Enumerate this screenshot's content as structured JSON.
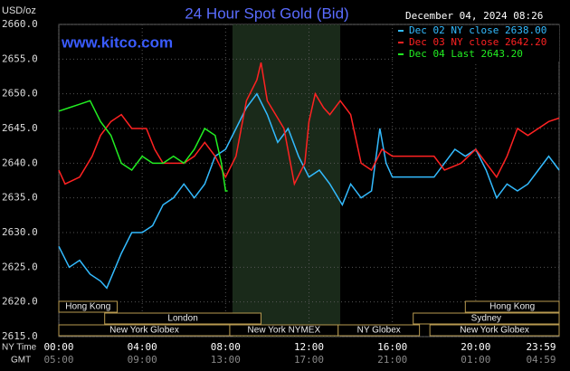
{
  "chart_data": {
    "type": "line",
    "title": "24 Hour Spot Gold (Bid)",
    "y_label": "USD/oz",
    "date": "December 04, 2024 08:26",
    "watermark": "www.kitco.com",
    "row_labels": [
      "NY Time",
      "GMT"
    ],
    "xlim": [
      0,
      24
    ],
    "ylim": [
      2615,
      2660
    ],
    "yticks": [
      {
        "value": 2615,
        "label": "2615.0"
      },
      {
        "value": 2620,
        "label": "2620.0"
      },
      {
        "value": 2625,
        "label": "2625.0"
      },
      {
        "value": 2630,
        "label": "2630.0"
      },
      {
        "value": 2635,
        "label": "2635.0"
      },
      {
        "value": 2640,
        "label": "2640.0"
      },
      {
        "value": 2645,
        "label": "2645.0"
      },
      {
        "value": 2650,
        "label": "2650.0"
      },
      {
        "value": 2655,
        "label": "2655.0"
      },
      {
        "value": 2660,
        "label": "2660.0"
      }
    ],
    "xticks": [
      {
        "value": 0,
        "label": "00:00"
      },
      {
        "value": 4,
        "label": "04:00"
      },
      {
        "value": 8,
        "label": "08:00"
      },
      {
        "value": 12,
        "label": "12:00"
      },
      {
        "value": 16,
        "label": "16:00"
      },
      {
        "value": 20,
        "label": "20:00"
      },
      {
        "value": 24,
        "label": "23:59"
      }
    ],
    "x2ticks": [
      {
        "value": 0,
        "label": "05:00"
      },
      {
        "value": 4,
        "label": "09:00"
      },
      {
        "value": 8,
        "label": "13:00"
      },
      {
        "value": 12,
        "label": "17:00"
      },
      {
        "value": 16,
        "label": "21:00"
      },
      {
        "value": 20,
        "label": "01:00"
      },
      {
        "value": 24,
        "label": "04:59"
      }
    ],
    "grid": true,
    "sessions": [
      "Hong Kong",
      "Hong Kong",
      "London",
      "Sydney",
      "New York Globex",
      "New York NYMEX",
      "NY Globex",
      "New York Globex"
    ],
    "series": [
      {
        "name": "Dec 02 NY close 2638.00",
        "color": "#33bbff",
        "x": [
          0,
          0.5,
          1,
          1.5,
          2,
          2.3,
          3,
          3.5,
          4,
          4.5,
          5,
          5.5,
          6,
          6.5,
          7,
          7.5,
          8,
          8.5,
          9,
          9.5,
          10,
          10.5,
          11,
          11.5,
          12,
          12.5,
          13,
          13.6,
          14,
          14.5,
          15,
          15.4,
          15.7,
          16,
          17,
          18,
          18.5,
          19,
          19.5,
          20,
          20.5,
          21,
          21.5,
          22,
          22.5,
          23,
          23.5,
          24
        ],
        "values": [
          2628,
          2625,
          2626,
          2624,
          2623,
          2622,
          2627,
          2630,
          2630,
          2631,
          2634,
          2635,
          2637,
          2635,
          2637,
          2641,
          2642,
          2645,
          2648,
          2650,
          2647,
          2643,
          2645,
          2641,
          2638,
          2639,
          2637,
          2634,
          2637,
          2635,
          2636,
          2645,
          2640,
          2638,
          2638,
          2638,
          2640,
          2642,
          2641,
          2642,
          2639,
          2635,
          2637,
          2636,
          2637,
          2639,
          2641,
          2639
        ]
      },
      {
        "name": "Dec 03 NY close 2642.20",
        "color": "#ff2222",
        "x": [
          0,
          0.3,
          1,
          1.6,
          2,
          2.5,
          3,
          3.5,
          4.2,
          4.6,
          5,
          6,
          6.5,
          7,
          7.5,
          8,
          8.5,
          9,
          9.5,
          9.7,
          10,
          10.4,
          10.8,
          11.3,
          11.8,
          12,
          12.3,
          12.7,
          13,
          13.5,
          14,
          14.5,
          15,
          15.5,
          16,
          17,
          18,
          18.5,
          19.3,
          20,
          20.5,
          21,
          21.5,
          22,
          22.5,
          23,
          23.5,
          24
        ],
        "values": [
          2639,
          2637,
          2638,
          2641,
          2644,
          2646,
          2647,
          2645,
          2645,
          2642,
          2640,
          2640,
          2641,
          2643,
          2641,
          2638,
          2641,
          2649,
          2652,
          2654.5,
          2649,
          2647,
          2645,
          2637,
          2640,
          2646,
          2650,
          2648,
          2647,
          2649,
          2647,
          2640,
          2639,
          2642,
          2641,
          2641,
          2641,
          2639,
          2640,
          2642,
          2640,
          2638,
          2641,
          2645,
          2644,
          2645,
          2646,
          2646.5
        ]
      },
      {
        "name": "Dec 04 Last 2643.20",
        "color": "#22ee22",
        "x": [
          0,
          0.5,
          1,
          1.5,
          2,
          2.5,
          3,
          3.5,
          4,
          4.5,
          5,
          5.5,
          6,
          6.5,
          7,
          7.5,
          7.8,
          8,
          8.1
        ],
        "values": [
          2647.5,
          2648,
          2648.5,
          2649,
          2646,
          2644,
          2640,
          2639,
          2641,
          2640,
          2640,
          2641,
          2640,
          2642,
          2645,
          2644,
          2640,
          2636,
          2636
        ]
      }
    ]
  }
}
